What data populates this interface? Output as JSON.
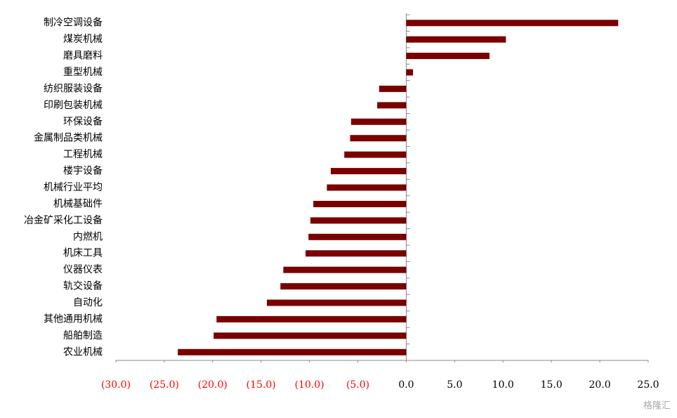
{
  "chart_data": {
    "type": "bar",
    "orientation": "horizontal",
    "categories": [
      "制冷空调设备",
      "煤炭机械",
      "磨具磨料",
      "重型机械",
      "纺织服装设备",
      "印刷包装机械",
      "环保设备",
      "金属制品类机械",
      "工程机械",
      "楼宇设备",
      "机械行业平均",
      "机械基础件",
      "冶金矿采化工设备",
      "内燃机",
      "机床工具",
      "仪器仪表",
      "轨交设备",
      "自动化",
      "其他通用机械",
      "船舶制造",
      "农业机械"
    ],
    "values": [
      21.9,
      10.3,
      8.6,
      0.7,
      -2.8,
      -3.0,
      -5.7,
      -5.8,
      -6.4,
      -7.8,
      -8.2,
      -9.6,
      -9.9,
      -10.1,
      -10.4,
      -12.7,
      -13.0,
      -14.4,
      -19.6,
      -19.9,
      -23.6
    ],
    "color": "#7a0000",
    "xlim": [
      -30,
      25
    ],
    "xticks": [
      {
        "value": -30,
        "label": "(30.0)"
      },
      {
        "value": -25,
        "label": "(25.0)"
      },
      {
        "value": -20,
        "label": "(20.0)"
      },
      {
        "value": -15,
        "label": "(15.0)"
      },
      {
        "value": -10,
        "label": "(10.0)"
      },
      {
        "value": -5,
        "label": "(5.0)"
      },
      {
        "value": 0,
        "label": "0.0"
      },
      {
        "value": 5,
        "label": "5.0"
      },
      {
        "value": 10,
        "label": "10.0"
      },
      {
        "value": 15,
        "label": "15.0"
      },
      {
        "value": 20,
        "label": "20.0"
      },
      {
        "value": 25,
        "label": "25.0"
      }
    ],
    "negative_tick_color": "#ff0000",
    "watermark": "格隆汇"
  }
}
